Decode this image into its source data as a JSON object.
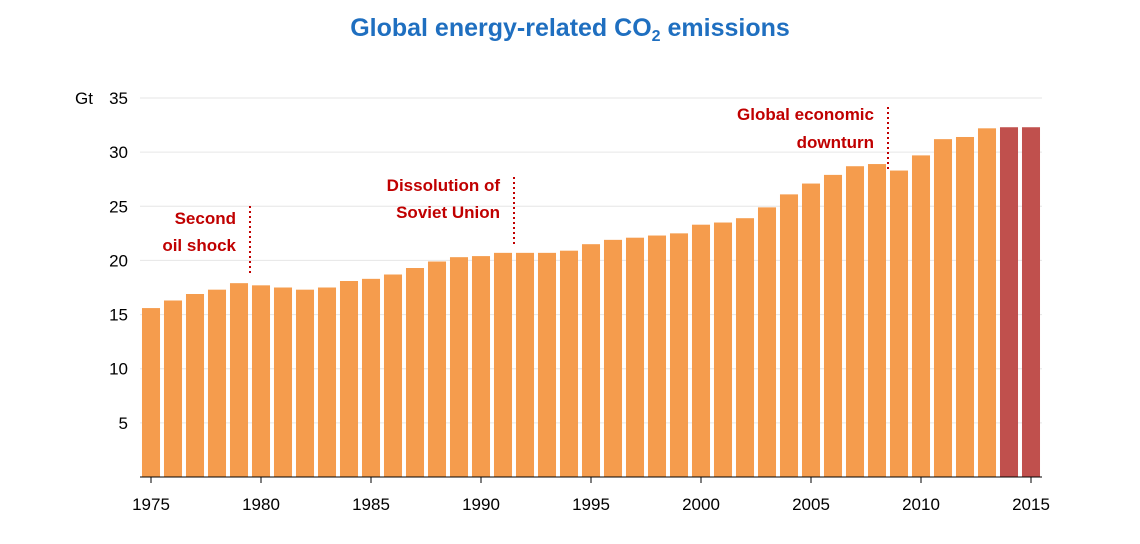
{
  "title": {
    "main": "Global energy-related CO",
    "subscript": "2",
    "suffix": " emissions"
  },
  "colors": {
    "title": "#1f6fc0",
    "bar": "#f59c4d",
    "bar_highlight": "#c0504d",
    "annotation": "#c00000",
    "grid": "#e6e6e6",
    "axis": "#000000"
  },
  "chart_data": {
    "type": "bar",
    "title": "Global energy-related CO2 emissions",
    "ylabel": "Gt",
    "xlabel": "",
    "ylim": [
      0,
      35
    ],
    "yticks": [
      5,
      10,
      15,
      20,
      25,
      30,
      35
    ],
    "xtick_labels": [
      "1975",
      "1980",
      "1985",
      "1990",
      "1995",
      "2000",
      "2005",
      "2010",
      "2015"
    ],
    "grid": true,
    "categories": [
      "1975",
      "1976",
      "1977",
      "1978",
      "1979",
      "1980",
      "1981",
      "1982",
      "1983",
      "1984",
      "1985",
      "1986",
      "1987",
      "1988",
      "1989",
      "1990",
      "1991",
      "1992",
      "1993",
      "1994",
      "1995",
      "1996",
      "1997",
      "1998",
      "1999",
      "2000",
      "2001",
      "2002",
      "2003",
      "2004",
      "2005",
      "2006",
      "2007",
      "2008",
      "2009",
      "2010",
      "2011",
      "2012",
      "2013",
      "2014",
      "2015"
    ],
    "values": [
      15.6,
      16.3,
      16.9,
      17.3,
      17.9,
      17.7,
      17.5,
      17.3,
      17.5,
      18.1,
      18.3,
      18.7,
      19.3,
      19.9,
      20.3,
      20.4,
      20.7,
      20.7,
      20.7,
      20.9,
      21.5,
      21.9,
      22.1,
      22.3,
      22.5,
      23.3,
      23.5,
      23.9,
      24.9,
      26.1,
      27.1,
      27.9,
      28.7,
      28.9,
      28.3,
      29.7,
      31.2,
      31.4,
      32.2,
      32.3,
      32.3
    ],
    "highlight_categories": [
      "2014",
      "2015"
    ],
    "annotations": [
      {
        "lines": [
          "Second",
          "oil shock"
        ],
        "year": "1979.5",
        "align": "right"
      },
      {
        "lines": [
          "Dissolution of",
          "Soviet Union"
        ],
        "year": "1991.5",
        "align": "right"
      },
      {
        "lines": [
          "Global economic",
          "downturn"
        ],
        "year": "2008.5",
        "align": "right"
      }
    ]
  }
}
